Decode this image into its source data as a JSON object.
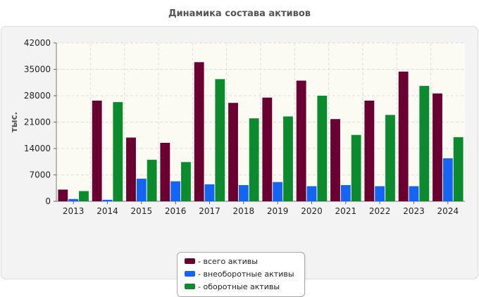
{
  "title": "Динамика состава активов",
  "chart_data": {
    "type": "bar",
    "title": "Динамика состава активов",
    "ylabel": "тыс.",
    "xlabel": "",
    "categories": [
      "2013",
      "2014",
      "2015",
      "2016",
      "2017",
      "2018",
      "2019",
      "2020",
      "2021",
      "2022",
      "2023",
      "2024"
    ],
    "ylim": [
      0,
      42000
    ],
    "yticks": [
      0,
      7000,
      14000,
      21000,
      28000,
      35000,
      42000
    ],
    "grid": true,
    "legend_position": "bottom-center",
    "series": [
      {
        "name": "- всего активы",
        "color": "#6a0032",
        "values": [
          3100,
          26700,
          16900,
          15500,
          36900,
          26100,
          27500,
          32000,
          21800,
          26700,
          34400,
          28600
        ]
      },
      {
        "name": "- внеоборотные активы",
        "color": "#1565f5",
        "values": [
          600,
          400,
          6000,
          5300,
          4500,
          4300,
          5100,
          4000,
          4300,
          4000,
          4000,
          11400
        ]
      },
      {
        "name": "- оборотные активы",
        "color": "#0b8a2e",
        "values": [
          2700,
          26300,
          11000,
          10400,
          32400,
          22000,
          22500,
          28000,
          17600,
          22900,
          30600,
          17000
        ]
      }
    ]
  }
}
